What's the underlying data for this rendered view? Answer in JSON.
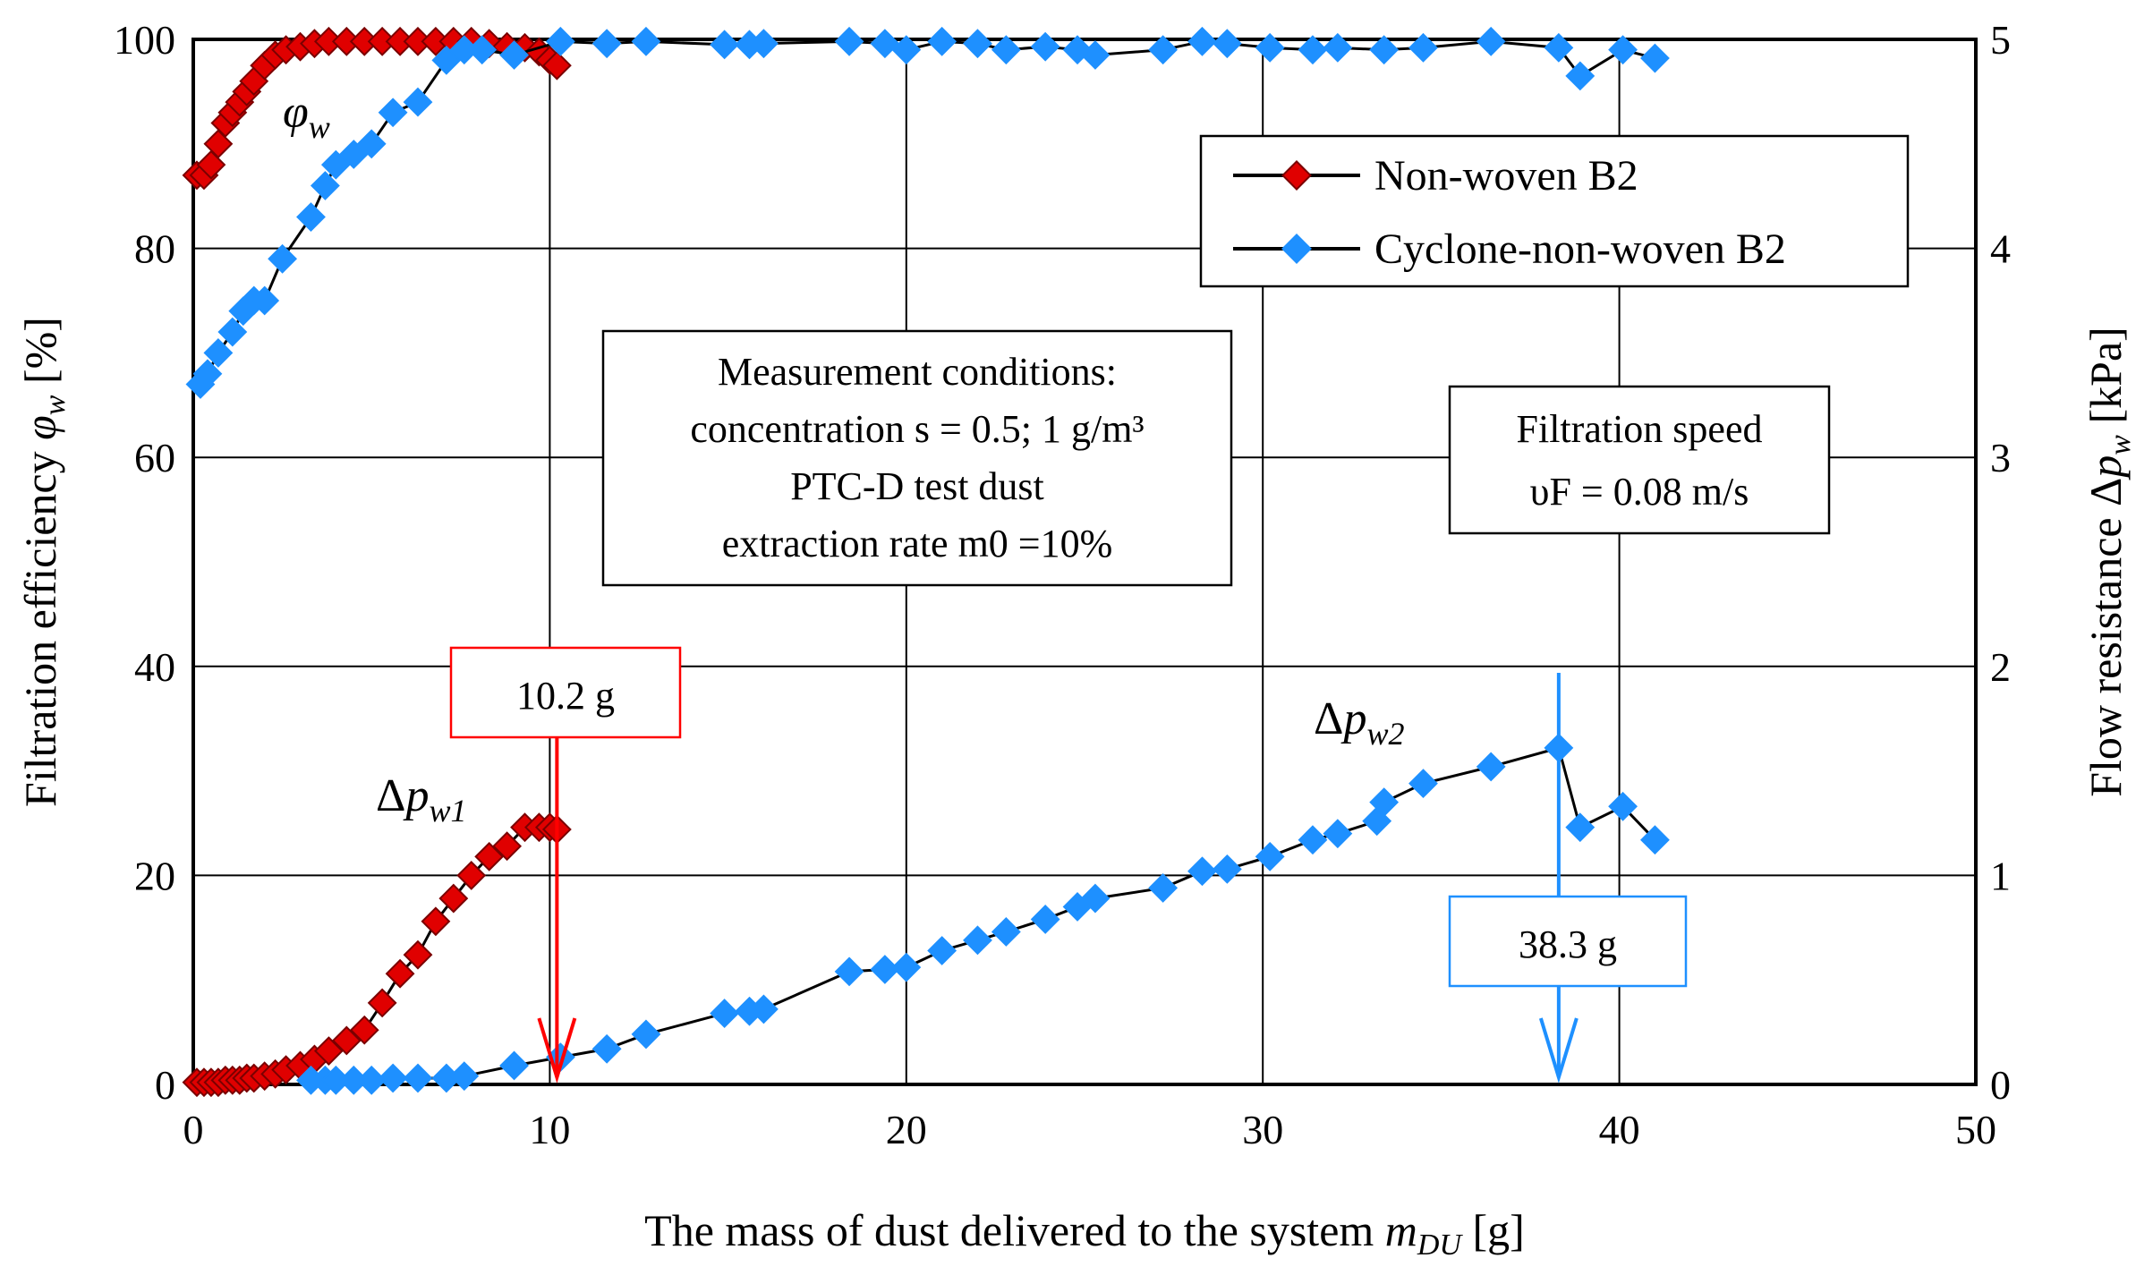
{
  "chart_data": {
    "type": "line",
    "xlabel": "The mass of dust delivered to the system m_DU [g]",
    "ylabel_left": "Filtration efficiency φ_w [%]",
    "ylabel_right": "Flow resistance Δp_w [kPa]",
    "x_ticks": [
      "0",
      "10",
      "20",
      "30",
      "40",
      "50"
    ],
    "y_left_ticks": [
      "0",
      "20",
      "40",
      "60",
      "80",
      "100"
    ],
    "y_right_ticks": [
      "0",
      "1",
      "2",
      "3",
      "4",
      "5"
    ],
    "xlim": [
      0,
      50
    ],
    "ylim_left": [
      0,
      100
    ],
    "ylim_right": [
      0,
      5
    ],
    "grid": true,
    "legend": {
      "placement": "top-right",
      "entries": [
        {
          "label": "Non-woven B2",
          "color": "#e00000"
        },
        {
          "label": "Cyclone-non-woven B2",
          "color": "#1e90ff"
        }
      ]
    },
    "series": [
      {
        "name": "Non-woven B2 φw",
        "axis": "left",
        "color": "#e00000",
        "x": [
          0.1,
          0.3,
          0.5,
          0.7,
          0.9,
          1.1,
          1.3,
          1.5,
          1.7,
          2.0,
          2.3,
          2.6,
          3.0,
          3.4,
          3.8,
          4.3,
          4.8,
          5.3,
          5.8,
          6.3,
          6.8,
          7.3,
          7.8,
          8.3,
          8.8,
          9.3,
          9.7,
          10.0,
          10.2
        ],
        "values": [
          87,
          87,
          88,
          90,
          92,
          93,
          94,
          95,
          96,
          97.5,
          98.5,
          99,
          99.3,
          99.6,
          99.8,
          99.8,
          99.8,
          99.8,
          99.8,
          99.8,
          99.8,
          99.8,
          99.8,
          99.6,
          99.3,
          99.2,
          98.8,
          98,
          97.5
        ]
      },
      {
        "name": "Non-woven B2 Δpw",
        "axis": "right",
        "color": "#e00000",
        "x": [
          0.1,
          0.3,
          0.5,
          0.7,
          0.9,
          1.1,
          1.3,
          1.5,
          1.7,
          2.0,
          2.3,
          2.6,
          3.0,
          3.4,
          3.8,
          4.3,
          4.8,
          5.3,
          5.8,
          6.3,
          6.8,
          7.3,
          7.8,
          8.3,
          8.8,
          9.3,
          9.7,
          10.0,
          10.2
        ],
        "values": [
          0.01,
          0.01,
          0.01,
          0.01,
          0.02,
          0.02,
          0.02,
          0.03,
          0.03,
          0.04,
          0.05,
          0.07,
          0.09,
          0.12,
          0.16,
          0.21,
          0.26,
          0.39,
          0.53,
          0.62,
          0.78,
          0.89,
          1.0,
          1.09,
          1.14,
          1.23,
          1.23,
          1.23,
          1.22
        ]
      },
      {
        "name": "Cyclone-non-woven B2 φw",
        "axis": "left",
        "color": "#1e90ff",
        "x": [
          0.2,
          0.4,
          0.7,
          1.1,
          1.4,
          1.7,
          2.0,
          2.5,
          3.3,
          3.7,
          4.0,
          4.5,
          5.0,
          5.6,
          6.3,
          7.1,
          7.6,
          8.1,
          9.0,
          10.3,
          11.6,
          12.7,
          14.9,
          15.6,
          16.0,
          18.4,
          19.4,
          20.0,
          21.0,
          22.0,
          22.8,
          23.9,
          24.8,
          25.3,
          27.2,
          28.3,
          29.0,
          30.2,
          31.4,
          32.1,
          33.4,
          34.5,
          36.4,
          38.3,
          38.9,
          40.1,
          41.0
        ],
        "values": [
          67,
          68,
          70,
          72,
          74,
          75,
          75,
          79,
          83,
          86,
          88,
          89,
          90,
          93,
          94,
          98,
          99,
          99,
          98.5,
          99.8,
          99.6,
          99.8,
          99.5,
          99.5,
          99.6,
          99.8,
          99.6,
          99,
          99.8,
          99.6,
          99,
          99.3,
          99,
          98.5,
          99,
          99.8,
          99.6,
          99.2,
          99,
          99.2,
          99,
          99.2,
          99.8,
          99.2,
          96.5,
          99,
          98.2
        ]
      },
      {
        "name": "Cyclone-non-woven B2 Δpw",
        "axis": "right",
        "color": "#1e90ff",
        "x": [
          3.3,
          3.7,
          4.0,
          4.5,
          5.0,
          5.6,
          6.3,
          7.1,
          7.6,
          9.0,
          10.3,
          11.6,
          12.7,
          14.9,
          15.6,
          16.0,
          18.4,
          19.4,
          20.0,
          21.0,
          22.0,
          22.8,
          23.9,
          24.8,
          25.3,
          27.2,
          28.3,
          29.0,
          30.2,
          31.4,
          32.1,
          33.2,
          33.4,
          34.5,
          36.4,
          38.3,
          38.9,
          40.1,
          41.0
        ],
        "values": [
          0.02,
          0.02,
          0.02,
          0.02,
          0.02,
          0.03,
          0.03,
          0.03,
          0.04,
          0.09,
          0.13,
          0.17,
          0.24,
          0.34,
          0.35,
          0.36,
          0.54,
          0.55,
          0.56,
          0.64,
          0.69,
          0.73,
          0.79,
          0.85,
          0.89,
          0.94,
          1.02,
          1.03,
          1.09,
          1.17,
          1.2,
          1.26,
          1.35,
          1.44,
          1.52,
          1.61,
          1.23,
          1.33,
          1.17
        ]
      }
    ],
    "annotations": {
      "phi_label": "φw",
      "dp1_label": "Δpw1",
      "dp2_label": "Δpw2",
      "marker1": {
        "text": "10.2 g",
        "x": 10.2,
        "color": "#ff0000"
      },
      "marker2": {
        "text": "38.3 g",
        "x": 38.3,
        "color": "#1e90ff"
      },
      "conditions_box": [
        "Measurement conditions:",
        "concentration s = 0.5; 1 g/m³",
        "PTC-D test dust",
        "extraction rate m0 =10%"
      ],
      "speed_box": [
        "Filtration speed",
        "υF = 0.08 m/s"
      ]
    }
  }
}
